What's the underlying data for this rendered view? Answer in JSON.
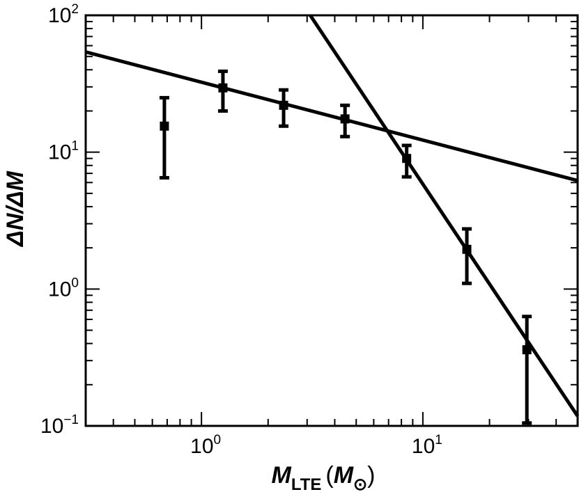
{
  "chart_data": {
    "type": "scatter",
    "xlabel": {
      "main": "M",
      "sub": "LTE",
      "unit_open": "(",
      "unit_main": "M",
      "unit_sub": "⊙",
      "unit_close": ")"
    },
    "ylabel": "ΔN/ΔM",
    "x_scale": "log",
    "y_scale": "log",
    "xlim": [
      0.3,
      50
    ],
    "ylim": [
      0.1,
      100
    ],
    "x_ticks": [
      {
        "value": 1,
        "base": "10",
        "exp": "0"
      },
      {
        "value": 10,
        "base": "10",
        "exp": "1"
      }
    ],
    "y_ticks": [
      {
        "value": 0.1,
        "base": "10",
        "exp": "−1"
      },
      {
        "value": 1,
        "base": "10",
        "exp": "0"
      },
      {
        "value": 10,
        "base": "10",
        "exp": "1"
      },
      {
        "value": 100,
        "base": "10",
        "exp": "2"
      }
    ],
    "grid": false,
    "legend": "none",
    "series": [
      {
        "kind": "points_with_errorbars",
        "points": [
          {
            "x": 0.68,
            "y": 15.5,
            "y_low": 6.5,
            "y_high": 25
          },
          {
            "x": 1.25,
            "y": 29.5,
            "y_low": 20,
            "y_high": 39
          },
          {
            "x": 2.35,
            "y": 22,
            "y_low": 15.5,
            "y_high": 28.5
          },
          {
            "x": 4.45,
            "y": 17.5,
            "y_low": 13,
            "y_high": 22
          },
          {
            "x": 8.45,
            "y": 9,
            "y_low": 6.6,
            "y_high": 11.2
          },
          {
            "x": 15.8,
            "y": 1.95,
            "y_low": 1.1,
            "y_high": 2.75
          },
          {
            "x": 29.5,
            "y": 0.36,
            "y_low": 0.105,
            "y_high": 0.63
          }
        ]
      },
      {
        "kind": "line",
        "points": [
          {
            "x": 0.3,
            "y": 54
          },
          {
            "x": 50,
            "y": 6.2
          }
        ]
      },
      {
        "kind": "line",
        "points": [
          {
            "x": 3.1,
            "y": 100
          },
          {
            "x": 50,
            "y": 0.118
          }
        ]
      }
    ],
    "colors": {
      "ink": "#000000",
      "background": "#ffffff"
    }
  }
}
